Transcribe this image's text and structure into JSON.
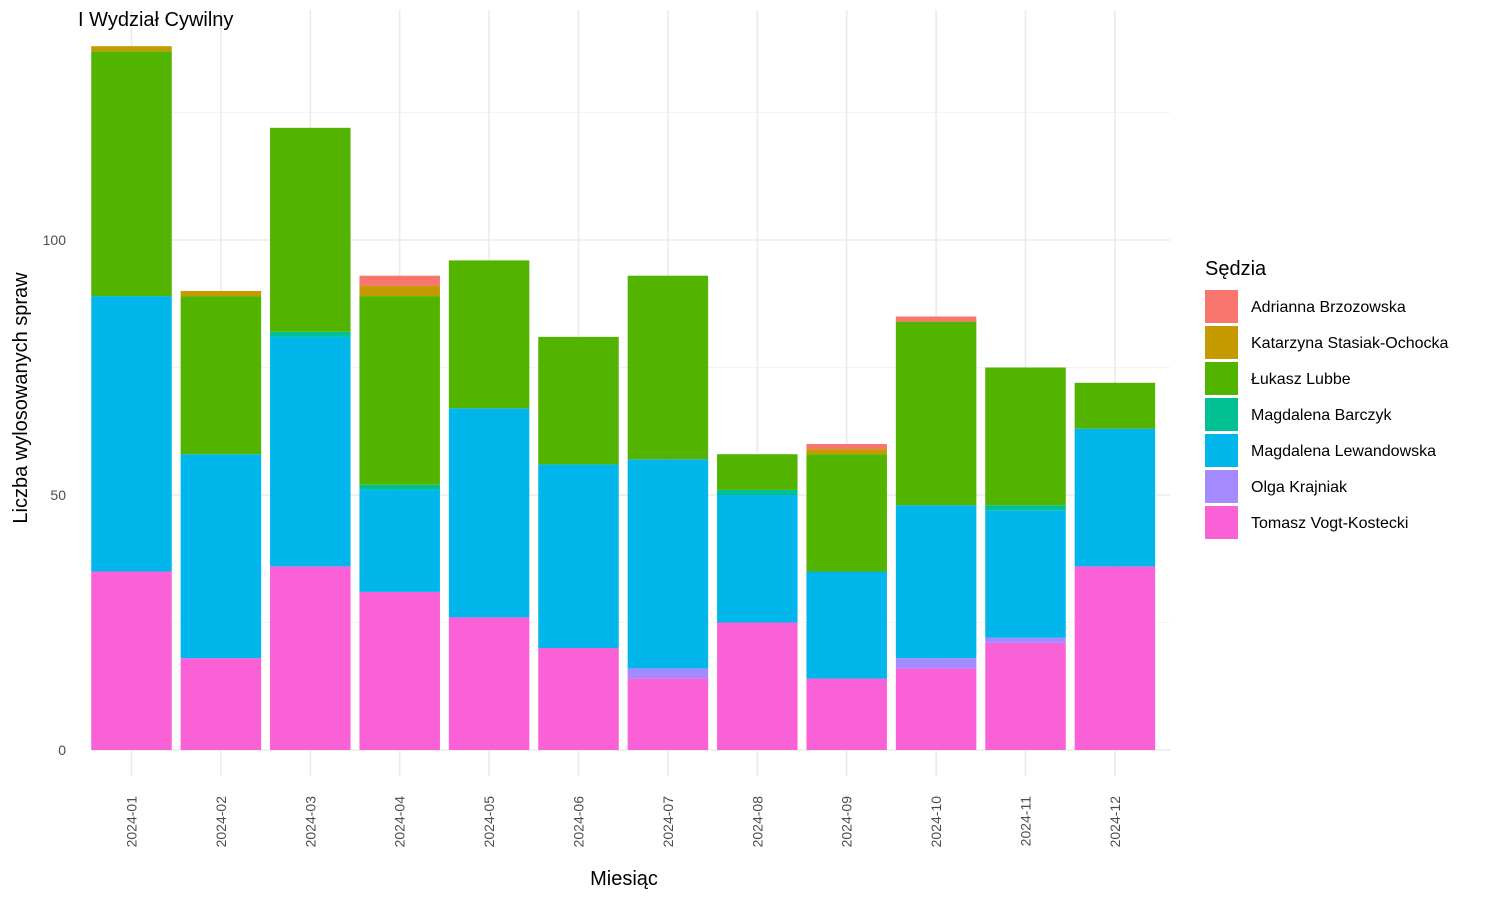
{
  "chart_data": {
    "type": "bar",
    "stacked": true,
    "title": "I Wydział Cywilny",
    "xlabel": "Miesiąc",
    "ylabel": "Liczba wylosowanych spraw",
    "ylim": [
      0,
      140
    ],
    "yticks": [
      0,
      50,
      100
    ],
    "grid": true,
    "legend_title": "Sędzia",
    "legend_position": "right",
    "categories": [
      "2024-01",
      "2024-02",
      "2024-03",
      "2024-04",
      "2024-05",
      "2024-06",
      "2024-07",
      "2024-08",
      "2024-09",
      "2024-10",
      "2024-11",
      "2024-12"
    ],
    "series": [
      {
        "name": "Tomasz Vogt-Kostecki",
        "color": "#FB61D7",
        "values": [
          35,
          18,
          36,
          31,
          26,
          20,
          14,
          25,
          14,
          16,
          21,
          36
        ]
      },
      {
        "name": "Olga Krajniak",
        "color": "#A58AFF",
        "values": [
          0,
          0,
          0,
          0,
          0,
          0,
          2,
          0,
          0,
          2,
          1,
          0
        ]
      },
      {
        "name": "Magdalena Lewandowska",
        "color": "#00B6EB",
        "values": [
          54,
          40,
          45,
          20,
          41,
          36,
          41,
          25,
          21,
          30,
          25,
          27
        ]
      },
      {
        "name": "Magdalena Barczyk",
        "color": "#00C094",
        "values": [
          0,
          0,
          1,
          1,
          0,
          0,
          0,
          1,
          0,
          0,
          1,
          0
        ]
      },
      {
        "name": "Łukasz Lubbe",
        "color": "#53B400",
        "values": [
          48,
          31,
          40,
          37,
          29,
          25,
          36,
          7,
          23,
          36,
          27,
          9
        ]
      },
      {
        "name": "Katarzyna Stasiak-Ochocka",
        "color": "#C49A00",
        "values": [
          1,
          1,
          0,
          2,
          0,
          0,
          0,
          0,
          1,
          0,
          0,
          0
        ]
      },
      {
        "name": "Adrianna Brzozowska",
        "color": "#F8766D",
        "values": [
          0,
          0,
          0,
          2,
          0,
          0,
          0,
          0,
          1,
          1,
          0,
          0
        ]
      }
    ],
    "legend_order": [
      "Adrianna Brzozowska",
      "Katarzyna Stasiak-Ochocka",
      "Łukasz Lubbe",
      "Magdalena Barczyk",
      "Magdalena Lewandowska",
      "Olga Krajniak",
      "Tomasz Vogt-Kostecki"
    ]
  }
}
